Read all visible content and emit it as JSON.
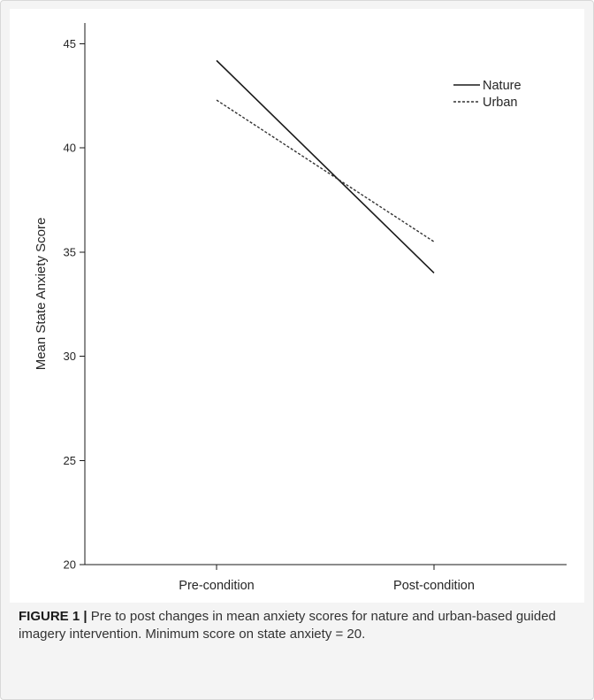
{
  "chart_data": {
    "type": "line",
    "categories": [
      "Pre-condition",
      "Post-condition"
    ],
    "series": [
      {
        "name": "Nature",
        "values": [
          44.2,
          34.0
        ],
        "color": "#1a1a1a",
        "dash": "solid"
      },
      {
        "name": "Urban",
        "values": [
          42.3,
          35.5
        ],
        "color": "#333333",
        "dash": "dotted"
      }
    ],
    "title": "",
    "xlabel": "",
    "ylabel": "Mean State Anxiety Score",
    "ylim": [
      20,
      46
    ],
    "yticks": [
      20,
      25,
      30,
      35,
      40,
      45
    ],
    "grid": false,
    "legend_position": "top-right"
  },
  "caption": {
    "label": "FIGURE 1 |",
    "text": " Pre to post changes in mean anxiety scores for nature and urban-based guided imagery intervention. Minimum score on state anxiety = 20."
  }
}
